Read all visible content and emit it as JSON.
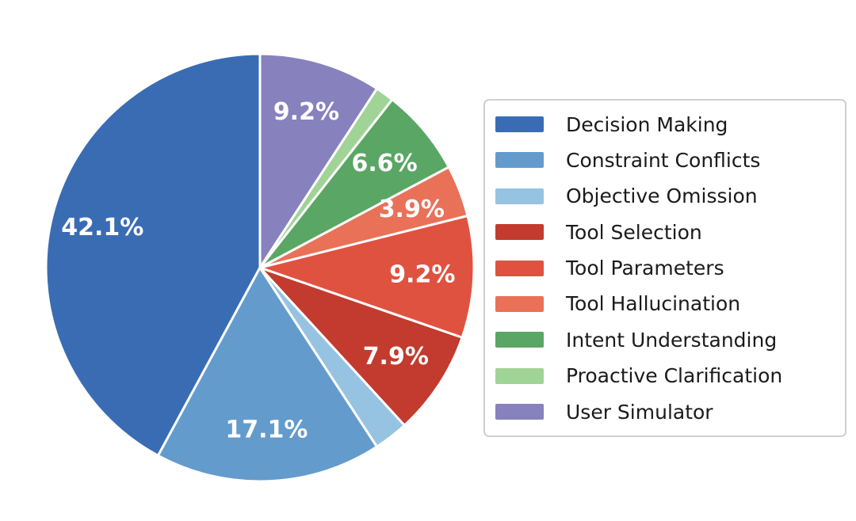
{
  "page": {
    "background_color": "#ffffff"
  },
  "chart_data": {
    "type": "pie",
    "title": "",
    "start_angle_deg": 90,
    "direction": "counterclockwise",
    "slice_border_color": "#ffffff",
    "pct_label_color": "#ffffff",
    "legend_position": "right",
    "legend_border_color": "#cfcfcf",
    "legend_text_color": "#1a1a1a",
    "segments": [
      {
        "label": "Decision Making",
        "value": 42.1,
        "pct_label": "42.1%",
        "color": "#3A6CB4"
      },
      {
        "label": "Constraint Conflicts",
        "value": 17.1,
        "pct_label": "17.1%",
        "color": "#649BCD"
      },
      {
        "label": "Objective Omission",
        "value": 2.6,
        "pct_label": "",
        "color": "#96C3E1"
      },
      {
        "label": "Tool Selection",
        "value": 7.9,
        "pct_label": "7.9%",
        "color": "#C23B2E"
      },
      {
        "label": "Tool Parameters",
        "value": 9.2,
        "pct_label": "9.2%",
        "color": "#E05240"
      },
      {
        "label": "Tool Hallucination",
        "value": 3.9,
        "pct_label": "3.9%",
        "color": "#E97158"
      },
      {
        "label": "Intent Understanding",
        "value": 6.6,
        "pct_label": "6.6%",
        "color": "#5AA664"
      },
      {
        "label": "Proactive Clarification",
        "value": 1.4,
        "pct_label": "",
        "color": "#A0D396"
      },
      {
        "label": "User Simulator",
        "value": 9.2,
        "pct_label": "9.2%",
        "color": "#8781BD"
      }
    ]
  }
}
